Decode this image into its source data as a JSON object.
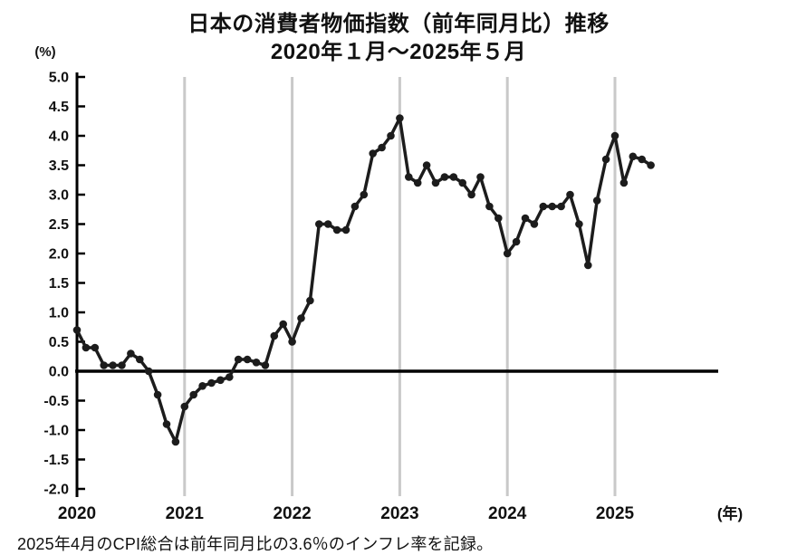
{
  "header": {
    "title": "日本の消費者物価指数（前年同月比）推移",
    "subtitle": "2020年１月～2025年５月"
  },
  "footer": {
    "note": "2025年4月のCPI総合は前年同月比の3.6％のインフレ率を記録。"
  },
  "chart_data": {
    "type": "line",
    "title": "日本の消費者物価指数（前年同月比）推移",
    "subtitle": "2020年１月～2025年５月",
    "ylabel": "(%)",
    "xlabel": "(年)",
    "ylim": [
      -2.0,
      5.0
    ],
    "y_tick_step": 0.5,
    "y_tick_labels": [
      "5.0",
      "4.5",
      "4.0",
      "3.5",
      "3.0",
      "2.5",
      "2.0",
      "1.5",
      "1.0",
      "0.5",
      "0.0",
      "-0.5",
      "-1.0",
      "-1.5",
      "-2.0"
    ],
    "x_tick_labels": [
      "2020",
      "2021",
      "2022",
      "2023",
      "2024",
      "2025"
    ],
    "grid": "vertical lines at each January, zero baseline emphasized",
    "legend": "none",
    "x_start": "2020-01",
    "x_end": "2025-05",
    "series": [
      {
        "year": "2020",
        "monthly_values": [
          0.7,
          0.4,
          0.4,
          0.1,
          0.1,
          0.1,
          0.3,
          0.2,
          0.0,
          -0.4,
          -0.9,
          -1.2
        ]
      },
      {
        "year": "2021",
        "monthly_values": [
          -0.6,
          -0.4,
          -0.25,
          -0.2,
          -0.15,
          -0.1,
          0.2,
          0.2,
          0.15,
          0.1,
          0.6,
          0.8
        ]
      },
      {
        "year": "2022",
        "monthly_values": [
          0.5,
          0.9,
          1.2,
          2.5,
          2.5,
          2.4,
          2.4,
          2.8,
          3.0,
          3.7,
          3.8,
          4.0
        ]
      },
      {
        "year": "2023",
        "monthly_values": [
          4.3,
          3.3,
          3.2,
          3.5,
          3.2,
          3.3,
          3.3,
          3.2,
          3.0,
          3.3,
          2.8,
          2.6
        ]
      },
      {
        "year": "2024",
        "monthly_values": [
          2.0,
          2.2,
          2.6,
          2.5,
          2.8,
          2.8,
          2.8,
          3.0,
          2.5,
          1.8,
          2.9,
          3.6
        ]
      },
      {
        "year": "2025",
        "monthly_values": [
          4.0,
          3.2,
          3.65,
          3.6,
          3.5
        ]
      }
    ]
  },
  "style": {
    "line_color": "#1c1c1c",
    "marker_color": "#1c1c1c",
    "grid_color": "#c9c9c9",
    "axis_color": "#000000",
    "text_color": "#111111",
    "background": "#ffffff"
  }
}
